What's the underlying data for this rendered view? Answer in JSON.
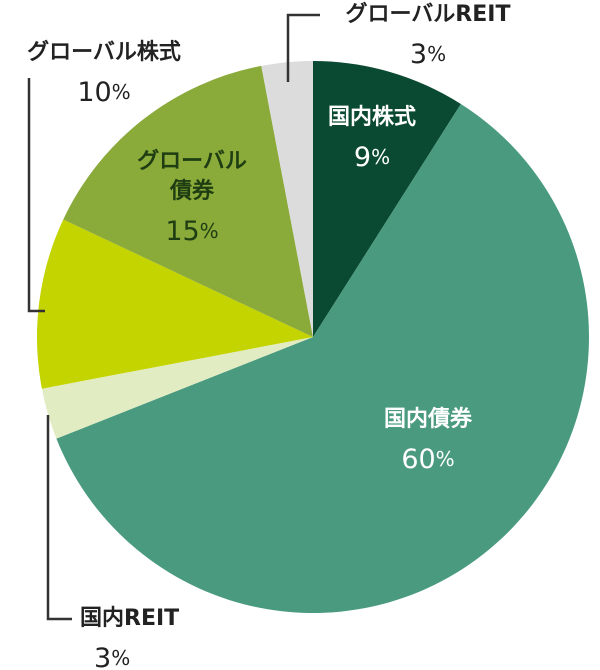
{
  "chart_data": {
    "type": "pie",
    "start_angle_deg": 0,
    "direction": "clockwise",
    "slices": [
      {
        "label": "国内株式",
        "value": 9,
        "display": "9%",
        "color": "#0b4a32",
        "text_color": "#ffffff"
      },
      {
        "label": "国内債券",
        "value": 60,
        "display": "60%",
        "color": "#4a9a80",
        "text_color": "#ffffff"
      },
      {
        "label": "国内REIT",
        "value": 3,
        "display": "3%",
        "color": "#e2ecc2",
        "text_color": "#222222"
      },
      {
        "label": "グローバル株式",
        "value": 10,
        "display": "10%",
        "color": "#c4d400",
        "text_color": "#222222"
      },
      {
        "label": [
          "グローバル",
          "債券"
        ],
        "value": 15,
        "display": "15%",
        "color": "#8aaa3a",
        "text_color": "#1f3d12"
      },
      {
        "label": "グローバルREIT",
        "value": 3,
        "display": "3%",
        "color": "#dcdcdc",
        "text_color": "#222222"
      }
    ],
    "leader_color": "#333333"
  }
}
